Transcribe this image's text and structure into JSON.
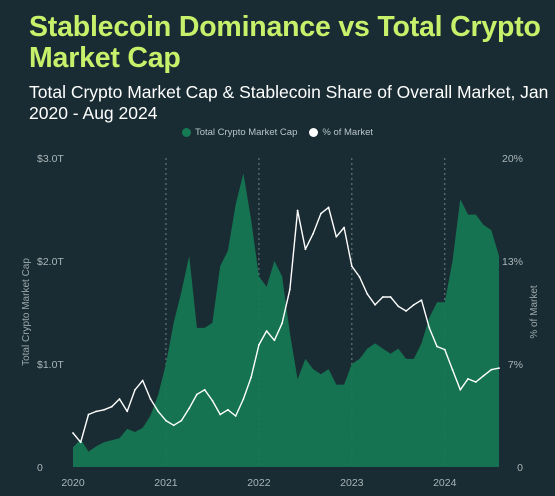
{
  "header": {
    "title": "Stablecoin Dominance vs Total Crypto Market Cap",
    "subtitle": "Total Crypto Market Cap & Stablecoin Share of Overall Market, Jan 2020 - Aug 2024"
  },
  "colors": {
    "background": "#1a2c33",
    "title": "#c7f06b",
    "area": "#157a54",
    "line": "#ffffff"
  },
  "chart_data": {
    "type": "area",
    "title": "Stablecoin Dominance vs Total Crypto Market Cap",
    "subtitle": "Total Crypto Market Cap & Stablecoin Share of Overall Market, Jan 2020 - Aug 2024",
    "ylabel_left": "Total Crypto Market Cap",
    "ylabel_right": "% of Market",
    "x_ticks": [
      "2020",
      "2021",
      "2022",
      "2023",
      "2024"
    ],
    "y_left_ticks": [
      "0",
      "$1.0T",
      "$2.0T",
      "$3.0T"
    ],
    "y_right_ticks": [
      "0",
      "7%",
      "13%",
      "20%"
    ],
    "ylim_left": [
      0,
      3.0
    ],
    "ylim_right": [
      0,
      20
    ],
    "xlim": [
      "2020-01",
      "2024-08"
    ],
    "grid": "vertical dotted lines at year boundaries",
    "legend_position": "top-center",
    "series": [
      {
        "name": "Total Crypto Market Cap",
        "unit": "trillion USD",
        "axis": "left",
        "x": [
          "2020-01",
          "2020-02",
          "2020-03",
          "2020-04",
          "2020-05",
          "2020-06",
          "2020-07",
          "2020-08",
          "2020-09",
          "2020-10",
          "2020-11",
          "2020-12",
          "2021-01",
          "2021-02",
          "2021-03",
          "2021-04",
          "2021-05",
          "2021-06",
          "2021-07",
          "2021-08",
          "2021-09",
          "2021-10",
          "2021-11",
          "2021-12",
          "2022-01",
          "2022-02",
          "2022-03",
          "2022-04",
          "2022-05",
          "2022-06",
          "2022-07",
          "2022-08",
          "2022-09",
          "2022-10",
          "2022-11",
          "2022-12",
          "2023-01",
          "2023-02",
          "2023-03",
          "2023-04",
          "2023-05",
          "2023-06",
          "2023-07",
          "2023-08",
          "2023-09",
          "2023-10",
          "2023-11",
          "2023-12",
          "2024-01",
          "2024-02",
          "2024-03",
          "2024-04",
          "2024-05",
          "2024-06",
          "2024-07",
          "2024-08"
        ],
        "values": [
          0.19,
          0.27,
          0.15,
          0.2,
          0.24,
          0.26,
          0.28,
          0.37,
          0.34,
          0.38,
          0.5,
          0.7,
          1.0,
          1.4,
          1.7,
          2.05,
          1.35,
          1.35,
          1.4,
          1.95,
          2.1,
          2.55,
          2.85,
          2.4,
          1.85,
          1.75,
          2.0,
          1.85,
          1.3,
          0.85,
          1.05,
          0.95,
          0.9,
          0.95,
          0.8,
          0.8,
          1.0,
          1.05,
          1.15,
          1.2,
          1.15,
          1.1,
          1.15,
          1.05,
          1.05,
          1.2,
          1.45,
          1.6,
          1.6,
          2.0,
          2.6,
          2.45,
          2.45,
          2.35,
          2.3,
          2.05
        ]
      },
      {
        "name": "% of Market",
        "unit": "percent",
        "axis": "right",
        "x": [
          "2020-01",
          "2020-02",
          "2020-03",
          "2020-04",
          "2020-05",
          "2020-06",
          "2020-07",
          "2020-08",
          "2020-09",
          "2020-10",
          "2020-11",
          "2020-12",
          "2021-01",
          "2021-02",
          "2021-03",
          "2021-04",
          "2021-05",
          "2021-06",
          "2021-07",
          "2021-08",
          "2021-09",
          "2021-10",
          "2021-11",
          "2021-12",
          "2022-01",
          "2022-02",
          "2022-03",
          "2022-04",
          "2022-05",
          "2022-06",
          "2022-07",
          "2022-08",
          "2022-09",
          "2022-10",
          "2022-11",
          "2022-12",
          "2023-01",
          "2023-02",
          "2023-03",
          "2023-04",
          "2023-05",
          "2023-06",
          "2023-07",
          "2023-08",
          "2023-09",
          "2023-10",
          "2023-11",
          "2023-12",
          "2024-01",
          "2024-02",
          "2024-03",
          "2024-04",
          "2024-05",
          "2024-06",
          "2024-07",
          "2024-08"
        ],
        "values": [
          2.2,
          1.6,
          3.4,
          3.6,
          3.7,
          3.9,
          4.4,
          3.6,
          5.0,
          5.6,
          4.4,
          3.6,
          3.0,
          2.7,
          3.0,
          3.8,
          4.7,
          5.0,
          4.3,
          3.4,
          3.7,
          3.3,
          4.4,
          5.8,
          7.9,
          8.8,
          8.2,
          9.3,
          11.5,
          16.6,
          14.1,
          15.1,
          16.4,
          16.8,
          14.9,
          15.5,
          13.0,
          12.3,
          11.2,
          10.5,
          11.0,
          11.0,
          10.4,
          10.1,
          10.5,
          10.8,
          9.0,
          7.8,
          7.6,
          6.3,
          5.0,
          5.7,
          5.5,
          5.9,
          6.3,
          6.4
        ]
      }
    ]
  }
}
